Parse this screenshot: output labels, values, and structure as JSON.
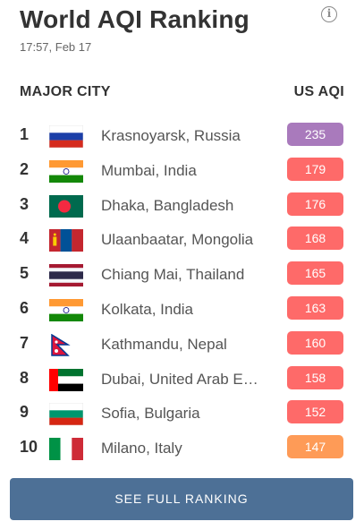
{
  "title": "World AQI Ranking",
  "info_icon": "info-icon",
  "timestamp": "17:57, Feb 17",
  "columns": {
    "city": "MAJOR CITY",
    "aqi": "US AQI"
  },
  "colors": {
    "very_unhealthy": "#a97abc",
    "unhealthy": "#fe6a69",
    "sensitive": "#fe9b57",
    "button": "#4d7096"
  },
  "rows": [
    {
      "rank": "1",
      "city": "Krasnoyarsk, Russia",
      "aqi": "235",
      "flag": "russia-flag",
      "color": "#a97abc"
    },
    {
      "rank": "2",
      "city": "Mumbai, India",
      "aqi": "179",
      "flag": "india-flag",
      "color": "#fe6a69"
    },
    {
      "rank": "3",
      "city": "Dhaka, Bangladesh",
      "aqi": "176",
      "flag": "bangladesh-flag",
      "color": "#fe6a69"
    },
    {
      "rank": "4",
      "city": "Ulaanbaatar, Mongolia",
      "aqi": "168",
      "flag": "mongolia-flag",
      "color": "#fe6a69"
    },
    {
      "rank": "5",
      "city": "Chiang Mai, Thailand",
      "aqi": "165",
      "flag": "thailand-flag",
      "color": "#fe6a69"
    },
    {
      "rank": "6",
      "city": "Kolkata, India",
      "aqi": "163",
      "flag": "india-flag",
      "color": "#fe6a69"
    },
    {
      "rank": "7",
      "city": "Kathmandu, Nepal",
      "aqi": "160",
      "flag": "nepal-flag",
      "color": "#fe6a69"
    },
    {
      "rank": "8",
      "city": "Dubai, United Arab Emirates",
      "aqi": "158",
      "flag": "uae-flag",
      "color": "#fe6a69"
    },
    {
      "rank": "9",
      "city": "Sofia, Bulgaria",
      "aqi": "152",
      "flag": "bulgaria-flag",
      "color": "#fe6a69"
    },
    {
      "rank": "10",
      "city": "Milano, Italy",
      "aqi": "147",
      "flag": "italy-flag",
      "color": "#fe9b57"
    }
  ],
  "button_label": "SEE FULL RANKING"
}
